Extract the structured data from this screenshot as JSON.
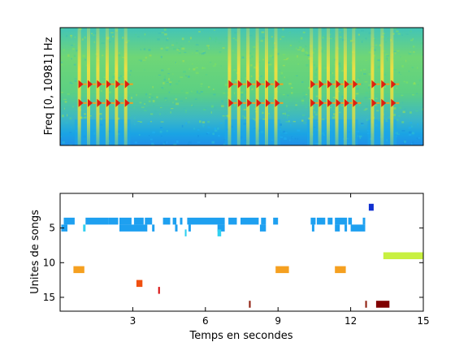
{
  "chart_data": [
    {
      "type": "heatmap",
      "title": "",
      "xlabel": "",
      "ylabel": "Freq [0, 10981] Hz",
      "xlim": [
        0,
        15
      ],
      "ylim": [
        0,
        10981
      ],
      "xticks": [],
      "yticks": [],
      "description_ranges": {
        "song_bursts_seconds": [
          [
            0.6,
            2.9
          ],
          [
            6.8,
            9.1
          ],
          [
            10.2,
            12.3
          ],
          [
            12.7,
            13.9
          ]
        ]
      },
      "colors": {
        "background": "#5fd27a",
        "low_band": "#1ab0e6",
        "harmonic": "#e03010",
        "streak": "#e0e040"
      }
    },
    {
      "type": "bar",
      "title": "",
      "xlabel": "Temps en secondes",
      "ylabel": "Unites de songs",
      "xlim": [
        0,
        15
      ],
      "ylim": [
        17,
        0
      ],
      "xticks": [
        "3",
        "6",
        "9",
        "12",
        "15"
      ],
      "yticks": [
        "5",
        "10",
        "15"
      ],
      "grid": false,
      "segments": [
        {
          "unit": 2,
          "start": 12.75,
          "end": 12.95,
          "color": "#1030d0"
        },
        {
          "unit": 4,
          "start": 0.15,
          "end": 0.6,
          "color": "#1ea0f0"
        },
        {
          "unit": 4,
          "start": 1.05,
          "end": 2.0,
          "color": "#1ea0f0"
        },
        {
          "unit": 4,
          "start": 2.0,
          "end": 2.4,
          "color": "#1ea0f0"
        },
        {
          "unit": 4,
          "start": 2.45,
          "end": 2.95,
          "color": "#1ea0f0"
        },
        {
          "unit": 4,
          "start": 3.05,
          "end": 3.45,
          "color": "#1ea0f0"
        },
        {
          "unit": 4,
          "start": 3.5,
          "end": 3.8,
          "color": "#1ea0f0"
        },
        {
          "unit": 4,
          "start": 4.25,
          "end": 4.55,
          "color": "#1ea0f0"
        },
        {
          "unit": 4,
          "start": 4.65,
          "end": 4.8,
          "color": "#1ea0f0"
        },
        {
          "unit": 4,
          "start": 4.95,
          "end": 5.05,
          "color": "#1ea0f0"
        },
        {
          "unit": 4,
          "start": 5.25,
          "end": 6.8,
          "color": "#1ea0f0"
        },
        {
          "unit": 4,
          "start": 6.95,
          "end": 7.3,
          "color": "#1ea0f0"
        },
        {
          "unit": 4,
          "start": 7.45,
          "end": 8.2,
          "color": "#1ea0f0"
        },
        {
          "unit": 4,
          "start": 8.3,
          "end": 8.5,
          "color": "#1ea0f0"
        },
        {
          "unit": 4,
          "start": 8.8,
          "end": 9.0,
          "color": "#1ea0f0"
        },
        {
          "unit": 4,
          "start": 10.35,
          "end": 10.55,
          "color": "#1ea0f0"
        },
        {
          "unit": 4,
          "start": 10.6,
          "end": 10.95,
          "color": "#1ea0f0"
        },
        {
          "unit": 4,
          "start": 11.05,
          "end": 11.25,
          "color": "#1ea0f0"
        },
        {
          "unit": 4,
          "start": 11.35,
          "end": 11.85,
          "color": "#1ea0f0"
        },
        {
          "unit": 4,
          "start": 11.9,
          "end": 12.05,
          "color": "#1ea0f0"
        },
        {
          "unit": 4,
          "start": 12.5,
          "end": 12.6,
          "color": "#1ea0f0"
        },
        {
          "unit": 5,
          "start": 0.05,
          "end": 0.3,
          "color": "#1ea0f0"
        },
        {
          "unit": 5,
          "start": 2.45,
          "end": 3.6,
          "color": "#1ea0f0"
        },
        {
          "unit": 5,
          "start": 3.8,
          "end": 3.9,
          "color": "#1ea0f0"
        },
        {
          "unit": 5,
          "start": 4.75,
          "end": 4.85,
          "color": "#1ea0f0"
        },
        {
          "unit": 5,
          "start": 5.3,
          "end": 5.4,
          "color": "#1ea0f0"
        },
        {
          "unit": 5,
          "start": 6.5,
          "end": 6.8,
          "color": "#1ea0f0"
        },
        {
          "unit": 5,
          "start": 8.25,
          "end": 8.5,
          "color": "#1ea0f0"
        },
        {
          "unit": 5,
          "start": 10.4,
          "end": 10.5,
          "color": "#1ea0f0"
        },
        {
          "unit": 5,
          "start": 11.35,
          "end": 11.55,
          "color": "#1ea0f0"
        },
        {
          "unit": 5,
          "start": 11.75,
          "end": 11.85,
          "color": "#1ea0f0"
        },
        {
          "unit": 5,
          "start": 12.0,
          "end": 12.6,
          "color": "#1ea0f0"
        },
        {
          "unit": 5,
          "start": 0.95,
          "end": 1.05,
          "color": "#30d0f0"
        },
        {
          "unit": 5.7,
          "start": 5.15,
          "end": 5.22,
          "color": "#30d0f0"
        },
        {
          "unit": 5.7,
          "start": 6.5,
          "end": 6.65,
          "color": "#30d0f0"
        },
        {
          "unit": 9,
          "start": 13.35,
          "end": 15.0,
          "color": "#c8f040"
        },
        {
          "unit": 11,
          "start": 0.55,
          "end": 1.0,
          "color": "#f5a020"
        },
        {
          "unit": 11,
          "start": 8.9,
          "end": 9.45,
          "color": "#f5a020"
        },
        {
          "unit": 11,
          "start": 11.35,
          "end": 11.8,
          "color": "#f5a020"
        },
        {
          "unit": 13,
          "start": 3.15,
          "end": 3.4,
          "color": "#f05010"
        },
        {
          "unit": 14,
          "start": 4.05,
          "end": 4.12,
          "color": "#d81010"
        },
        {
          "unit": 16,
          "start": 7.8,
          "end": 7.87,
          "color": "#902010"
        },
        {
          "unit": 16,
          "start": 12.6,
          "end": 12.67,
          "color": "#902010"
        },
        {
          "unit": 16,
          "start": 13.05,
          "end": 13.6,
          "color": "#800000"
        }
      ]
    }
  ]
}
